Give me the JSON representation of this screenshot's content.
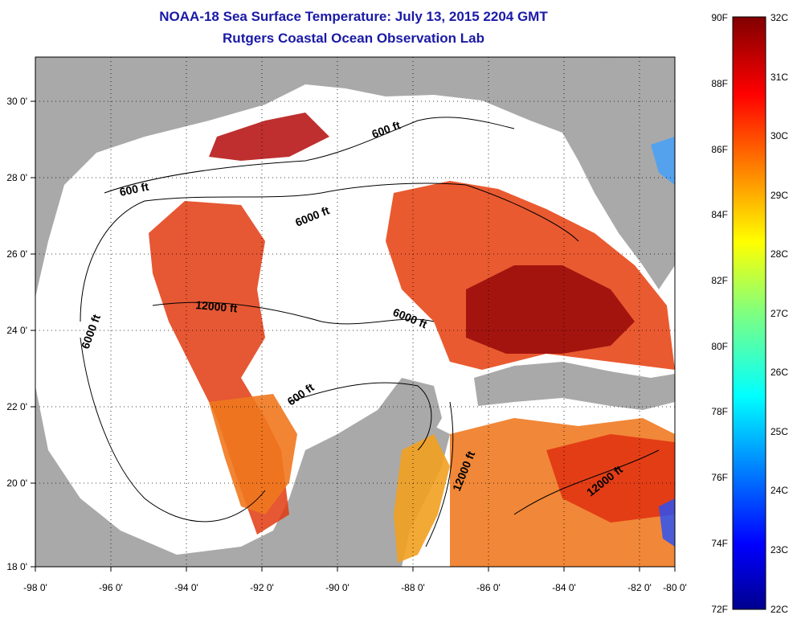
{
  "title": "NOAA-18 Sea Surface Temperature:  July 13, 2015 2204 GMT",
  "subtitle": "Rutgers Coastal Ocean Observation Lab",
  "lon_ticks": [
    "-98 0'",
    "-96 0'",
    "-94 0'",
    "-92 0'",
    "-90 0'",
    "-88 0'",
    "-86 0'",
    "-84 0'",
    "-82 0'",
    "-80 0'"
  ],
  "lat_ticks": [
    "30 0'",
    "28 0'",
    "26 0'",
    "24 0'",
    "22 0'",
    "20 0'",
    "18 0'"
  ],
  "contour_labels": [
    "600 ft",
    "600 ft",
    "6000 ft",
    "12000 ft",
    "6000 ft",
    "6000 ft",
    "600 ft",
    "12000 ft",
    "12000 ft"
  ],
  "colorbar": {
    "fahrenheit": [
      "90F",
      "88F",
      "86F",
      "84F",
      "82F",
      "80F",
      "78F",
      "76F",
      "74F",
      "72F"
    ],
    "celsius": [
      "32C",
      "31C",
      "30C",
      "29C",
      "28C",
      "27C",
      "26C",
      "25C",
      "24C",
      "23C",
      "22C"
    ]
  },
  "colors": {
    "land": "#a9a9a9",
    "cloud": "#ffffff",
    "title": "#1a1aa6",
    "scale_low": "#00008f",
    "scale_high": "#800000"
  }
}
